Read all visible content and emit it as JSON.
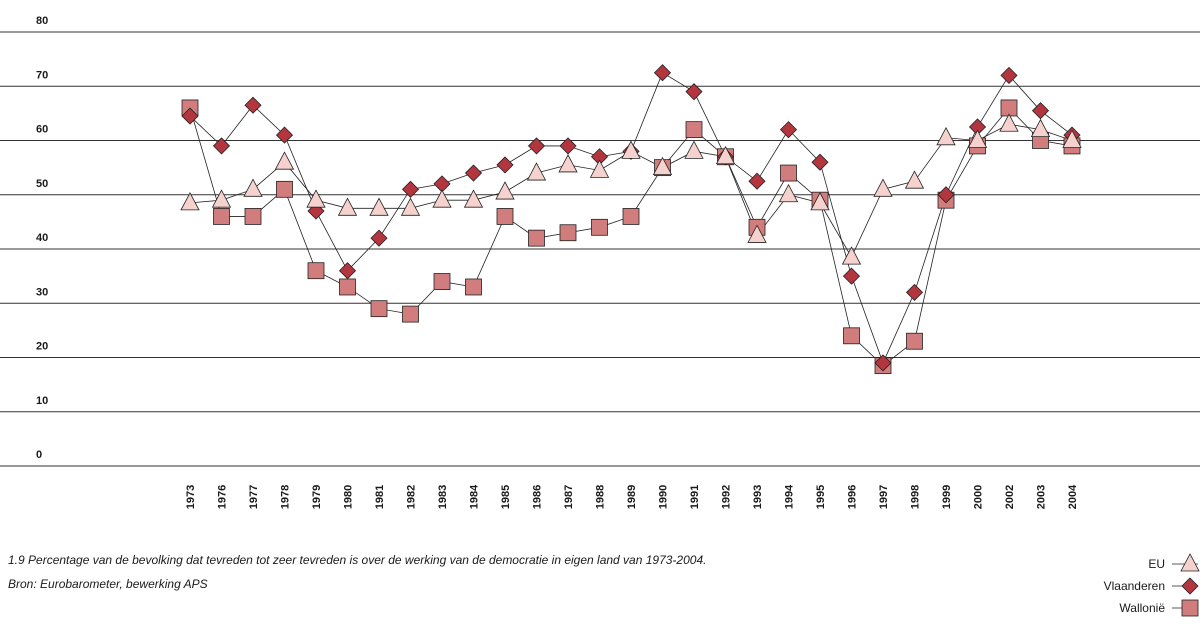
{
  "chart_data": {
    "type": "line",
    "title": "1.9   Percentage van de bevolking dat tevreden tot zeer tevreden is over de werking van de democratie in eigen land van 1973-2004.",
    "subtitle": "Bron: Eurobarometer, bewerking APS",
    "categories": [
      "1973",
      "1976",
      "1977",
      "1978",
      "1979",
      "1980",
      "1981",
      "1982",
      "1983",
      "1984",
      "1985",
      "1986",
      "1987",
      "1988",
      "1989",
      "1990",
      "1991",
      "1992",
      "1993",
      "1994",
      "1995",
      "1996",
      "1997",
      "1998",
      "1999",
      "2000",
      "2002",
      "2003",
      "2004"
    ],
    "series": [
      {
        "name": "EU",
        "color": "#f6d2ce",
        "marker": "triangle",
        "values": [
          48.5,
          49,
          51,
          56,
          49,
          47.5,
          47.5,
          47.5,
          49,
          49,
          50.5,
          54,
          55.5,
          54.5,
          58,
          55,
          58,
          57,
          42.5,
          50,
          48.5,
          38.5,
          51,
          52.5,
          60.5,
          60,
          63,
          62,
          60
        ]
      },
      {
        "name": "Vlaanderen",
        "color": "#b3363f",
        "marker": "diamond",
        "values": [
          64.5,
          59,
          66.5,
          61,
          47,
          36,
          42,
          51,
          52,
          54,
          55.5,
          59,
          59,
          57,
          58,
          72.5,
          69,
          57,
          52.5,
          62,
          56,
          35,
          19,
          32,
          50,
          62.5,
          72,
          65.5,
          61
        ]
      },
      {
        "name": "Wallonië",
        "color": "#d17d7d",
        "marker": "square",
        "values": [
          66,
          46,
          46,
          51,
          36,
          33,
          29,
          28,
          34,
          33,
          46,
          42,
          43,
          44,
          46,
          55,
          62,
          57,
          44,
          54,
          49,
          24,
          18.5,
          23,
          49,
          59,
          66,
          60,
          59
        ]
      }
    ],
    "ylim": [
      0,
      80
    ],
    "yticks": [
      0,
      10,
      20,
      30,
      40,
      50,
      60,
      70,
      80
    ],
    "grid": true
  }
}
